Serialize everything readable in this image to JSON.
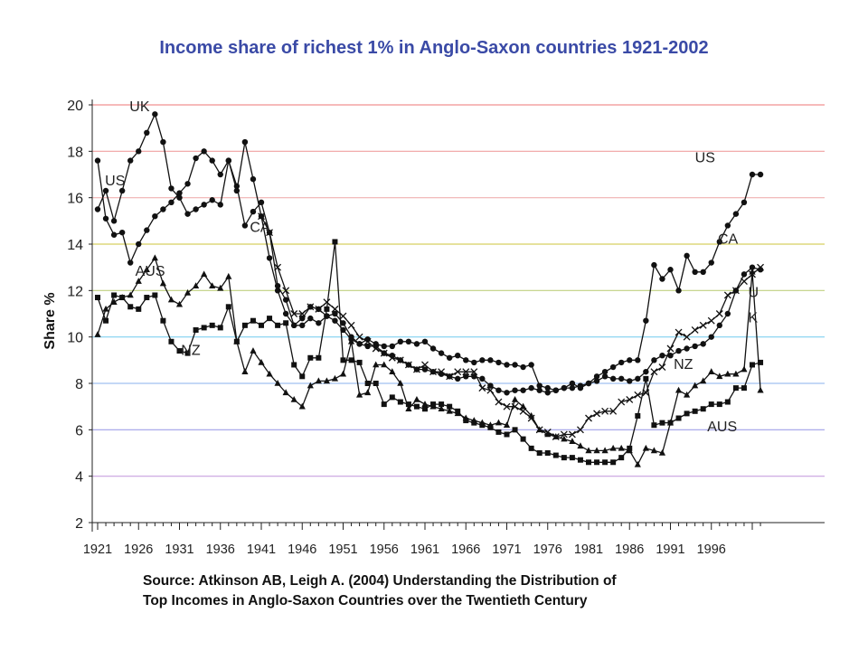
{
  "title": "Income share of richest 1% in Anglo-Saxon countries 1921-2002",
  "source": {
    "line1": "Source: Atkinson AB, Leigh A. (2004) Understanding the Distribution of",
    "line2": "Top Incomes in Anglo-Saxon Countries over the Twentieth Century"
  },
  "chart_data": {
    "type": "line",
    "title": "Income share of richest 1% in Anglo-Saxon countries 1921-2002",
    "xlabel": "",
    "ylabel": "Share %",
    "xlim": [
      1921,
      2002
    ],
    "ylim": [
      2,
      20
    ],
    "xticks": [
      1921,
      1926,
      1931,
      1936,
      1941,
      1946,
      1951,
      1956,
      1961,
      1966,
      1971,
      1976,
      1981,
      1986,
      1991,
      1996
    ],
    "yticks": [
      2,
      4,
      6,
      8,
      10,
      12,
      14,
      16,
      18,
      20
    ],
    "grid_colors": [
      "#f0a0d8",
      "#c8a0e0",
      "#a0a0e8",
      "#a0c0f0",
      "#80d0f0",
      "#c0d080",
      "#d8d060",
      "#f0b0b0",
      "#f0a0a0",
      "#f09090"
    ],
    "grid": true,
    "series": [
      {
        "name": "UK",
        "marker": "circle",
        "x": [
          1921,
          1922,
          1923,
          1924,
          1925,
          1926,
          1927,
          1928,
          1929,
          1930,
          1931,
          1932,
          1933,
          1934,
          1935,
          1936,
          1937,
          1938,
          1939,
          1940,
          1941,
          1942,
          1943,
          1944,
          1945,
          1946,
          1947,
          1948,
          1949,
          1950,
          1951,
          1952,
          1953,
          1954,
          1955,
          1956,
          1957,
          1958,
          1959,
          1960,
          1961,
          1962,
          1963,
          1964,
          1965,
          1966,
          1967,
          1968,
          1969,
          1970,
          1971,
          1972,
          1973,
          1974,
          1975,
          1976,
          1977,
          1978,
          1979,
          1980,
          1981,
          1982,
          1983,
          1984,
          1985,
          1986,
          1987,
          1988,
          1989,
          1990,
          1991,
          1992,
          1993,
          1994,
          1995,
          1996,
          1997,
          1998,
          1999,
          2000,
          2001,
          2002
        ],
        "values": [
          17.6,
          15.1,
          14.4,
          14.5,
          13.2,
          14.0,
          14.6,
          15.2,
          15.5,
          15.8,
          16.2,
          16.6,
          17.7,
          18.0,
          17.6,
          17.0,
          17.6,
          16.3,
          18.4,
          16.8,
          15.2,
          13.4,
          12.0,
          11.0,
          10.5,
          10.5,
          10.8,
          10.6,
          10.9,
          11.0,
          10.6,
          10.0,
          9.7,
          9.9,
          9.7,
          9.6,
          9.6,
          9.8,
          9.8,
          9.7,
          9.8,
          9.5,
          9.3,
          9.1,
          9.2,
          9.0,
          8.9,
          9.0,
          9.0,
          8.9,
          8.8,
          8.8,
          8.7,
          8.8,
          7.9,
          7.8,
          7.7,
          7.8,
          7.8,
          7.9,
          8.0,
          8.1,
          8.3,
          8.2,
          8.2,
          8.1,
          8.2,
          8.5,
          9.0,
          9.2,
          9.2,
          9.4,
          9.5,
          9.6,
          9.7,
          10.0,
          10.5,
          11.0,
          12.0,
          12.7,
          13.0,
          12.9
        ]
      },
      {
        "name": "US",
        "marker": "circle",
        "x": [
          1921,
          1922,
          1923,
          1924,
          1925,
          1926,
          1927,
          1928,
          1929,
          1930,
          1931,
          1932,
          1933,
          1934,
          1935,
          1936,
          1937,
          1938,
          1939,
          1940,
          1941,
          1942,
          1943,
          1944,
          1945,
          1946,
          1947,
          1948,
          1949,
          1950,
          1951,
          1952,
          1953,
          1954,
          1955,
          1956,
          1957,
          1958,
          1959,
          1960,
          1961,
          1962,
          1963,
          1964,
          1965,
          1966,
          1967,
          1968,
          1969,
          1970,
          1971,
          1972,
          1973,
          1974,
          1975,
          1976,
          1977,
          1978,
          1979,
          1980,
          1981,
          1982,
          1983,
          1984,
          1985,
          1986,
          1987,
          1988,
          1989,
          1990,
          1991,
          1992,
          1993,
          1994,
          1995,
          1996,
          1997,
          1998,
          1999,
          2000,
          2001,
          2002
        ],
        "values": [
          15.5,
          16.3,
          15.0,
          16.3,
          17.6,
          18.0,
          18.8,
          19.6,
          18.4,
          16.4,
          16.0,
          15.3,
          15.5,
          15.7,
          15.9,
          15.7,
          17.6,
          16.5,
          14.8,
          15.4,
          15.8,
          14.5,
          12.2,
          11.6,
          10.5,
          10.8,
          11.3,
          11.2,
          10.9,
          10.7,
          10.3,
          9.9,
          9.7,
          9.6,
          9.6,
          9.3,
          9.2,
          9.0,
          8.8,
          8.6,
          8.6,
          8.5,
          8.4,
          8.3,
          8.2,
          8.3,
          8.3,
          8.2,
          7.9,
          7.7,
          7.6,
          7.7,
          7.7,
          7.8,
          7.7,
          7.6,
          7.7,
          7.8,
          8.0,
          7.8,
          8.0,
          8.3,
          8.5,
          8.7,
          8.9,
          9.0,
          9.0,
          10.7,
          13.1,
          12.5,
          12.9,
          12.0,
          13.5,
          12.8,
          12.8,
          13.2,
          14.1,
          14.8,
          15.3,
          15.8,
          17.0,
          17.0
        ]
      },
      {
        "name": "CA",
        "marker": "cross",
        "x": [
          1941,
          1942,
          1943,
          1944,
          1945,
          1946,
          1947,
          1948,
          1949,
          1950,
          1951,
          1952,
          1953,
          1954,
          1955,
          1956,
          1957,
          1958,
          1959,
          1960,
          1961,
          1962,
          1963,
          1964,
          1965,
          1966,
          1967,
          1968,
          1969,
          1970,
          1971,
          1972,
          1973,
          1974,
          1975,
          1976,
          1977,
          1978,
          1979,
          1980,
          1981,
          1982,
          1983,
          1984,
          1985,
          1986,
          1987,
          1988,
          1989,
          1990,
          1991,
          1992,
          1993,
          1994,
          1995,
          1996,
          1997,
          1998,
          1999,
          2000,
          2001,
          2002
        ],
        "values": [
          15.2,
          14.5,
          13.0,
          12.0,
          11.0,
          11.0,
          11.3,
          11.2,
          11.5,
          11.2,
          10.9,
          10.5,
          10.0,
          9.8,
          9.5,
          9.3,
          9.1,
          9.0,
          8.8,
          8.6,
          8.8,
          8.5,
          8.5,
          8.3,
          8.5,
          8.5,
          8.5,
          7.8,
          7.7,
          7.2,
          7.0,
          7.0,
          6.8,
          6.5,
          6.0,
          5.9,
          5.7,
          5.8,
          5.8,
          6.0,
          6.5,
          6.7,
          6.8,
          6.8,
          7.2,
          7.3,
          7.5,
          7.6,
          8.5,
          8.7,
          9.5,
          10.2,
          10.0,
          10.3,
          10.5,
          10.7,
          11.0,
          11.8,
          12.0,
          12.4,
          12.7,
          13.0
        ]
      },
      {
        "name": "AUS",
        "marker": "triangle",
        "x": [
          1921,
          1922,
          1923,
          1924,
          1925,
          1926,
          1927,
          1928,
          1929,
          1930,
          1931,
          1932,
          1933,
          1934,
          1935,
          1936,
          1937,
          1938,
          1939,
          1940,
          1941,
          1942,
          1943,
          1944,
          1945,
          1946,
          1947,
          1948,
          1949,
          1950,
          1951,
          1952,
          1953,
          1954,
          1955,
          1956,
          1957,
          1958,
          1959,
          1960,
          1961,
          1962,
          1963,
          1964,
          1965,
          1966,
          1967,
          1968,
          1969,
          1970,
          1971,
          1972,
          1973,
          1974,
          1975,
          1976,
          1977,
          1978,
          1979,
          1980,
          1981,
          1982,
          1983,
          1984,
          1985,
          1986,
          1987,
          1988,
          1989,
          1990,
          1991,
          1992,
          1993,
          1994,
          1995,
          1996,
          1997,
          1998,
          1999,
          2000,
          2001,
          2002
        ],
        "values": [
          10.1,
          11.2,
          11.5,
          11.7,
          11.8,
          12.4,
          12.9,
          13.4,
          12.3,
          11.6,
          11.4,
          11.9,
          12.2,
          12.7,
          12.2,
          12.1,
          12.6,
          9.8,
          8.5,
          9.4,
          8.9,
          8.4,
          8.0,
          7.6,
          7.3,
          7.0,
          7.9,
          8.1,
          8.1,
          8.2,
          8.4,
          9.8,
          7.5,
          7.6,
          8.8,
          8.8,
          8.5,
          8.0,
          6.9,
          7.3,
          7.1,
          7.0,
          6.9,
          6.8,
          6.7,
          6.5,
          6.4,
          6.3,
          6.2,
          6.3,
          6.2,
          7.3,
          7.0,
          6.6,
          6.0,
          5.8,
          5.7,
          5.6,
          5.5,
          5.3,
          5.1,
          5.1,
          5.1,
          5.2,
          5.2,
          5.1,
          4.5,
          5.2,
          5.1,
          5.0,
          6.3,
          7.7,
          7.5,
          7.9,
          8.1,
          8.5,
          8.3,
          8.4,
          8.4,
          8.6,
          12.8,
          7.7
        ]
      },
      {
        "name": "NZ",
        "marker": "square",
        "x": [
          1921,
          1922,
          1923,
          1924,
          1925,
          1926,
          1927,
          1928,
          1929,
          1930,
          1931,
          1932,
          1933,
          1934,
          1935,
          1936,
          1937,
          1938,
          1939,
          1940,
          1941,
          1942,
          1943,
          1944,
          1945,
          1946,
          1947,
          1948,
          1949,
          1950,
          1951,
          1952,
          1953,
          1954,
          1955,
          1956,
          1957,
          1958,
          1959,
          1960,
          1961,
          1962,
          1963,
          1964,
          1965,
          1966,
          1967,
          1968,
          1969,
          1970,
          1971,
          1972,
          1973,
          1974,
          1975,
          1976,
          1977,
          1978,
          1979,
          1980,
          1981,
          1982,
          1983,
          1984,
          1985,
          1986,
          1987,
          1988,
          1989,
          1990,
          1991,
          1992,
          1993,
          1994,
          1995,
          1996,
          1997,
          1998,
          1999,
          2000,
          2001,
          2002
        ],
        "values": [
          11.7,
          10.7,
          11.8,
          11.7,
          11.3,
          11.2,
          11.7,
          11.8,
          10.7,
          9.8,
          9.4,
          9.3,
          10.3,
          10.4,
          10.5,
          10.4,
          11.3,
          9.8,
          10.5,
          10.7,
          10.5,
          10.8,
          10.5,
          10.6,
          8.8,
          8.3,
          9.1,
          9.1,
          11.2,
          14.1,
          9.0,
          9.0,
          8.9,
          8.0,
          8.0,
          7.1,
          7.4,
          7.2,
          7.1,
          7.0,
          6.9,
          7.1,
          7.1,
          7.0,
          6.8,
          6.4,
          6.3,
          6.2,
          6.1,
          5.9,
          5.8,
          6.0,
          5.6,
          5.2,
          5.0,
          5.0,
          4.9,
          4.8,
          4.8,
          4.7,
          4.6,
          4.6,
          4.6,
          4.6,
          4.8,
          5.2,
          6.6,
          8.2,
          6.2,
          6.3,
          6.3,
          6.5,
          6.7,
          6.8,
          6.9,
          7.1,
          7.1,
          7.2,
          7.8,
          7.8,
          8.8,
          8.9
        ]
      }
    ],
    "annotations": [
      {
        "text": "UK",
        "x": 1924.9,
        "y": 20.0
      },
      {
        "text": "US",
        "x": 1921.9,
        "y": 16.8
      },
      {
        "text": "CA",
        "x": 1939.6,
        "y": 14.8
      },
      {
        "text": "AUS",
        "x": 1925.6,
        "y": 12.9
      },
      {
        "text": "NZ",
        "x": 1931.2,
        "y": 9.5
      },
      {
        "text": "US",
        "x": 1994.0,
        "y": 17.8
      },
      {
        "text": "CA",
        "x": 1996.8,
        "y": 14.3
      },
      {
        "text": "U",
        "x": 2000.5,
        "y": 12.0
      },
      {
        "text": "K",
        "x": 2000.5,
        "y": 10.9
      },
      {
        "text": "NZ",
        "x": 1991.4,
        "y": 8.9
      },
      {
        "text": "AUS",
        "x": 1995.5,
        "y": 6.2
      }
    ]
  }
}
